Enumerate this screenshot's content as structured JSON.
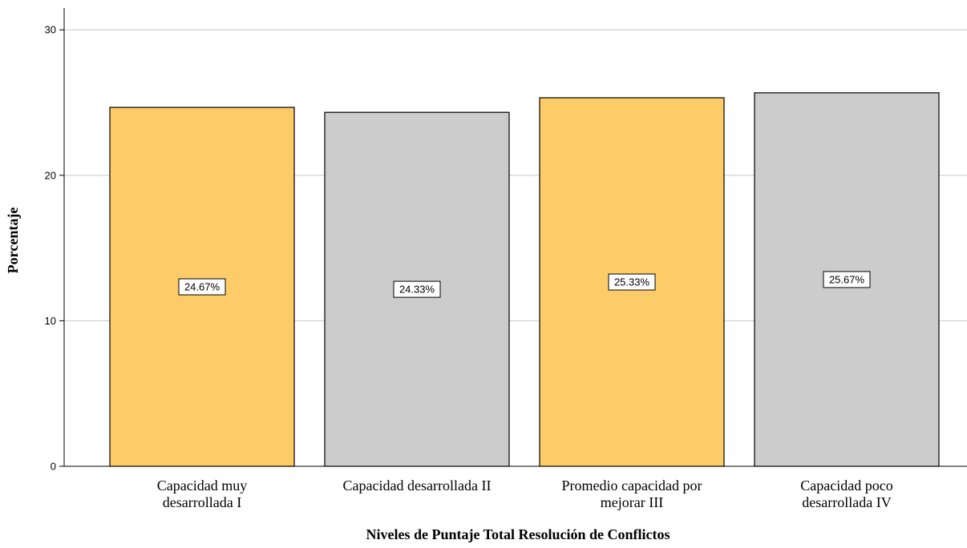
{
  "chart_data": {
    "type": "bar",
    "categories": [
      [
        "Capacidad muy",
        "desarrollada I"
      ],
      [
        "Capacidad desarrollada II"
      ],
      [
        "Promedio capacidad por",
        "mejorar III"
      ],
      [
        "Capacidad poco",
        "desarrollada IV"
      ]
    ],
    "values": [
      24.67,
      24.33,
      25.33,
      25.67
    ],
    "data_labels": [
      "24.67%",
      "24.33%",
      "25.33%",
      "25.67%"
    ],
    "bar_colors": [
      "#fdcb68",
      "#cccccc",
      "#fdcb68",
      "#cccccc"
    ],
    "xlabel": "Niveles de Puntaje Total Resolución de Conflictos",
    "ylabel": "Porcentaje",
    "ylim": [
      0,
      31.5
    ],
    "yticks": [
      0,
      10,
      20,
      30
    ],
    "grid": true,
    "colors": {
      "gridline": "#c8c8c8",
      "axis": "#000000",
      "bar_outline": "#000000"
    }
  }
}
